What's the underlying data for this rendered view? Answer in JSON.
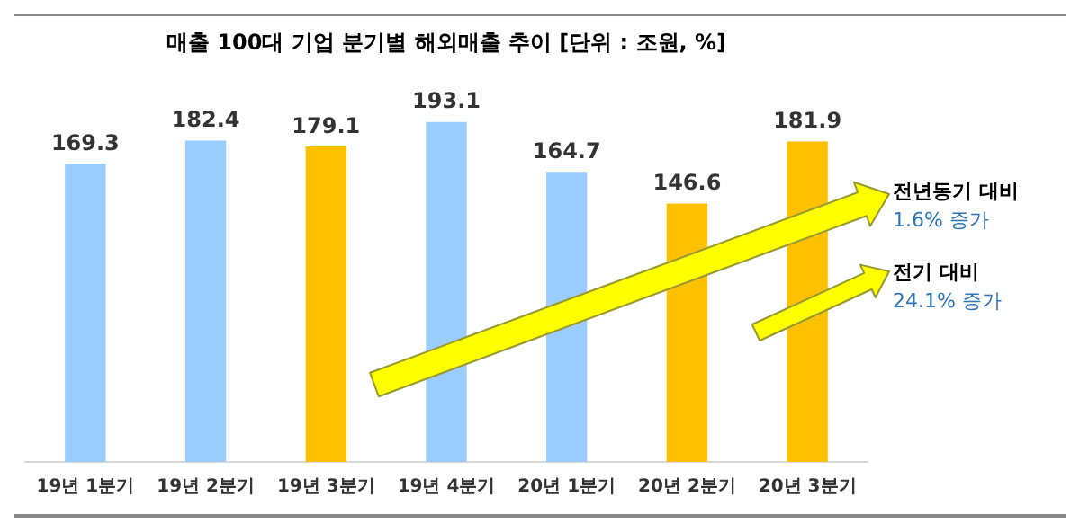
{
  "chart_data": {
    "type": "bar",
    "title": "매출 100대 기업 분기별 해외매출 추이 [단위 : 조원, %]",
    "categories": [
      "19년 1분기",
      "19년 2분기",
      "19년 3분기",
      "19년 4분기",
      "20년 1분기",
      "20년 2분기",
      "20년 3분기"
    ],
    "values": [
      169.3,
      182.4,
      179.1,
      193.1,
      164.7,
      146.6,
      181.9
    ],
    "colors": [
      "#99ccff",
      "#99ccff",
      "#ffc000",
      "#99ccff",
      "#99ccff",
      "#ffc000",
      "#ffc000"
    ],
    "data_labels": true,
    "grid": false,
    "legend": false,
    "annotations": [
      "전년동기 대비",
      "1.6% 증가",
      "전기 대비",
      "24.1% 증가"
    ]
  }
}
